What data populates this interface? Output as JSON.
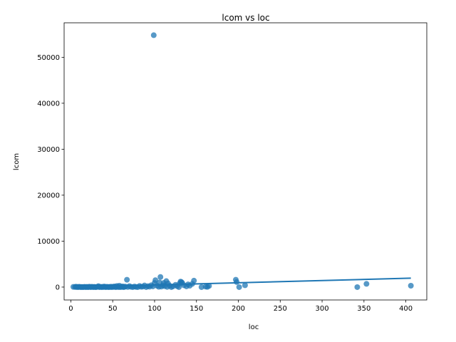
{
  "chart_data": {
    "type": "scatter",
    "title": "lcom vs loc",
    "xlabel": "loc",
    "ylabel": "lcom",
    "xlim": [
      -8,
      425
    ],
    "ylim": [
      -2800,
      57500
    ],
    "xticks": [
      0,
      50,
      100,
      150,
      200,
      250,
      300,
      350,
      400
    ],
    "yticks": [
      0,
      10000,
      20000,
      30000,
      40000,
      50000
    ],
    "grid": false,
    "point_color": "#1f77b4",
    "trend_color": "#1f77b4",
    "trendline": {
      "x": [
        3,
        406
      ],
      "y": [
        -10,
        1940
      ]
    },
    "points": [
      [
        99,
        54800
      ],
      [
        3,
        50
      ],
      [
        5,
        20
      ],
      [
        6,
        80
      ],
      [
        7,
        10
      ],
      [
        8,
        40
      ],
      [
        9,
        0
      ],
      [
        10,
        60
      ],
      [
        11,
        20
      ],
      [
        12,
        0
      ],
      [
        13,
        30
      ],
      [
        14,
        10
      ],
      [
        15,
        0
      ],
      [
        16,
        50
      ],
      [
        17,
        20
      ],
      [
        18,
        0
      ],
      [
        19,
        40
      ],
      [
        20,
        10
      ],
      [
        21,
        0
      ],
      [
        22,
        90
      ],
      [
        23,
        30
      ],
      [
        24,
        0
      ],
      [
        25,
        60
      ],
      [
        26,
        20
      ],
      [
        27,
        0
      ],
      [
        28,
        40
      ],
      [
        29,
        10
      ],
      [
        30,
        0
      ],
      [
        31,
        30
      ],
      [
        32,
        80
      ],
      [
        33,
        200
      ],
      [
        34,
        0
      ],
      [
        35,
        50
      ],
      [
        36,
        20
      ],
      [
        37,
        0
      ],
      [
        38,
        60
      ],
      [
        39,
        10
      ],
      [
        40,
        120
      ],
      [
        41,
        30
      ],
      [
        42,
        0
      ],
      [
        43,
        70
      ],
      [
        44,
        20
      ],
      [
        45,
        0
      ],
      [
        46,
        40
      ],
      [
        47,
        10
      ],
      [
        48,
        90
      ],
      [
        49,
        0
      ],
      [
        50,
        60
      ],
      [
        51,
        20
      ],
      [
        52,
        150
      ],
      [
        53,
        30
      ],
      [
        54,
        0
      ],
      [
        55,
        250
      ],
      [
        56,
        40
      ],
      [
        57,
        10
      ],
      [
        58,
        300
      ],
      [
        59,
        0
      ],
      [
        60,
        80
      ],
      [
        61,
        20
      ],
      [
        62,
        150
      ],
      [
        63,
        0
      ],
      [
        64,
        40
      ],
      [
        65,
        100
      ],
      [
        67,
        1600
      ],
      [
        68,
        20
      ],
      [
        70,
        200
      ],
      [
        72,
        50
      ],
      [
        74,
        0
      ],
      [
        76,
        120
      ],
      [
        78,
        30
      ],
      [
        80,
        0
      ],
      [
        82,
        250
      ],
      [
        84,
        60
      ],
      [
        86,
        100
      ],
      [
        88,
        350
      ],
      [
        90,
        0
      ],
      [
        92,
        200
      ],
      [
        94,
        80
      ],
      [
        96,
        400
      ],
      [
        98,
        150
      ],
      [
        100,
        900
      ],
      [
        101,
        1500
      ],
      [
        103,
        300
      ],
      [
        105,
        60
      ],
      [
        106,
        1000
      ],
      [
        107,
        2200
      ],
      [
        108,
        100
      ],
      [
        110,
        400
      ],
      [
        111,
        900
      ],
      [
        112,
        200
      ],
      [
        114,
        1300
      ],
      [
        115,
        50
      ],
      [
        116,
        800
      ],
      [
        118,
        300
      ],
      [
        120,
        0
      ],
      [
        122,
        150
      ],
      [
        125,
        500
      ],
      [
        127,
        200
      ],
      [
        129,
        0
      ],
      [
        130,
        800
      ],
      [
        131,
        1200
      ],
      [
        132,
        1100
      ],
      [
        133,
        900
      ],
      [
        135,
        400
      ],
      [
        138,
        150
      ],
      [
        140,
        600
      ],
      [
        142,
        300
      ],
      [
        145,
        700
      ],
      [
        147,
        1400
      ],
      [
        156,
        0
      ],
      [
        161,
        100
      ],
      [
        163,
        50
      ],
      [
        165,
        250
      ],
      [
        197,
        1600
      ],
      [
        198,
        1100
      ],
      [
        201,
        0
      ],
      [
        208,
        400
      ],
      [
        342,
        0
      ],
      [
        353,
        700
      ],
      [
        406,
        300
      ]
    ]
  }
}
